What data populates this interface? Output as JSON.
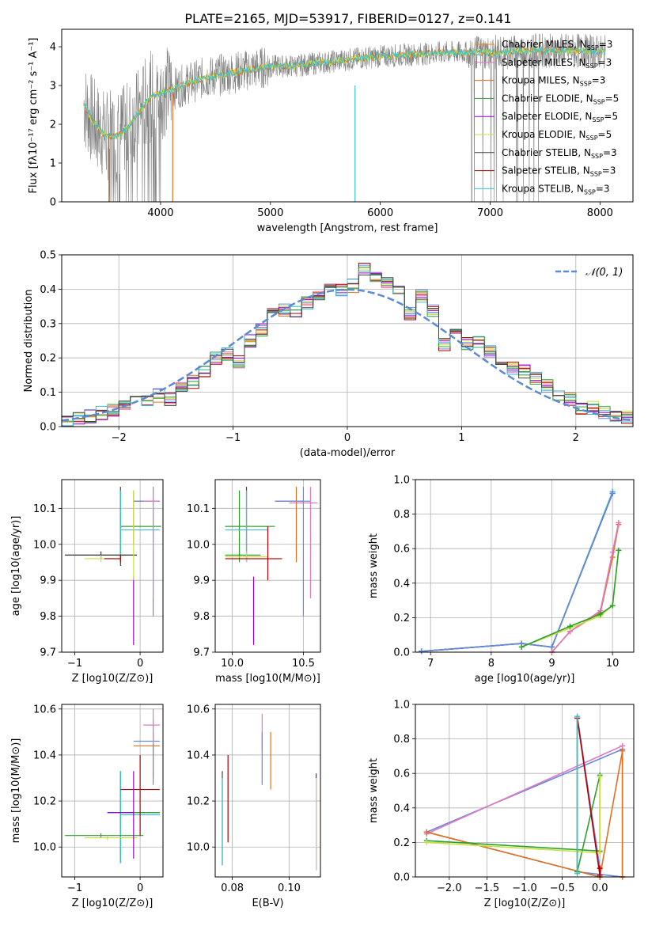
{
  "title": "PLATE=2165, MJD=53917, FIBERID=0127, z=0.141",
  "palette": [
    "#808080",
    "#ff7f0e",
    "#e07020",
    "#2ca02c",
    "#9400d3",
    "#c8e040",
    "#404040",
    "#b00000",
    "#40c0d0",
    "#6688dd",
    "#e377c2"
  ],
  "chart_data": [
    {
      "id": "spectrum",
      "type": "line",
      "xlabel": "wavelength [Angstrom, rest frame]",
      "ylabel": "Flux [f$_\\lambda$10$^{-17}$ erg cm$^{-2}$ s$^{-1}$ A$^{-1}$]",
      "ylabel_text": "Flux [fλ10⁻¹⁷ erg cm⁻² s⁻¹ A⁻¹]",
      "xlim": [
        3100,
        8300
      ],
      "ylim": [
        0,
        4.45
      ],
      "xticks": [
        4000,
        5000,
        6000,
        7000,
        8000
      ],
      "yticks": [
        0,
        1,
        2,
        3,
        4
      ],
      "legend_position": "top-right",
      "legend": [
        {
          "label": "Chabrier MILES, N_SSP=3",
          "color": "#ff7f0e"
        },
        {
          "label": "Salpeter MILES, N_SSP=3",
          "color": "#e377c2"
        },
        {
          "label": "Kroupa MILES, N_SSP=3",
          "color": "#e07020"
        },
        {
          "label": "Chabrier ELODIE, N_SSP=5",
          "color": "#2ca02c"
        },
        {
          "label": "Salpeter ELODIE, N_SSP=5",
          "color": "#9400d3"
        },
        {
          "label": "Kroupa ELODIE, N_SSP=5",
          "color": "#c8e040"
        },
        {
          "label": "Chabrier STELIB, N_SSP=3",
          "color": "#404040"
        },
        {
          "label": "Salpeter STELIB, N_SSP=3",
          "color": "#b00000"
        },
        {
          "label": "Kroupa STELIB, N_SSP=3",
          "color": "#40c0d0"
        }
      ],
      "continuum": {
        "x": [
          3300,
          3400,
          3500,
          3600,
          3700,
          3800,
          3900,
          4000,
          4100,
          4200,
          4400,
          4600,
          4800,
          5000,
          5200,
          5500,
          5800,
          6000,
          6300,
          6600,
          7000,
          7400,
          7800,
          8050
        ],
        "y": [
          2.5,
          2.0,
          1.7,
          1.7,
          1.9,
          2.3,
          2.7,
          2.8,
          2.9,
          3.0,
          3.2,
          3.3,
          3.4,
          3.5,
          3.5,
          3.6,
          3.7,
          3.75,
          3.8,
          3.85,
          3.85,
          3.9,
          3.9,
          3.85
        ]
      }
    },
    {
      "id": "residuals",
      "type": "step",
      "xlabel": "(data-model)/error",
      "ylabel": "Normed distribution",
      "xlim": [
        -2.5,
        2.5
      ],
      "ylim": [
        0,
        0.5
      ],
      "xticks": [
        -2,
        -1,
        0,
        1,
        2
      ],
      "xtick_labels": [
        "−2",
        "−1",
        "0",
        "1",
        "2"
      ],
      "yticks": [
        0,
        0.1,
        0.2,
        0.3,
        0.4,
        0.5
      ],
      "ytick_labels": [
        "0.0",
        "0.1",
        "0.2",
        "0.3",
        "0.4",
        "0.5"
      ],
      "legend": [
        {
          "label": "𝒩(0, 1)",
          "color": "#5b8bd0"
        }
      ],
      "bin_edges": [
        -2.5,
        -2.4,
        -2.3,
        -2.2,
        -2.1,
        -2.0,
        -1.9,
        -1.8,
        -1.7,
        -1.6,
        -1.5,
        -1.4,
        -1.3,
        -1.2,
        -1.1,
        -1.0,
        -0.9,
        -0.8,
        -0.7,
        -0.6,
        -0.5,
        -0.4,
        -0.3,
        -0.2,
        -0.1,
        0.0,
        0.1,
        0.2,
        0.3,
        0.4,
        0.5,
        0.6,
        0.7,
        0.8,
        0.9,
        1.0,
        1.1,
        1.2,
        1.3,
        1.4,
        1.5,
        1.6,
        1.7,
        1.8,
        1.9,
        2.0,
        2.1,
        2.2,
        2.3,
        2.4,
        2.5
      ],
      "counts": [
        0.02,
        0.025,
        0.03,
        0.04,
        0.05,
        0.06,
        0.07,
        0.08,
        0.09,
        0.08,
        0.11,
        0.13,
        0.16,
        0.2,
        0.21,
        0.19,
        0.25,
        0.28,
        0.33,
        0.34,
        0.33,
        0.36,
        0.38,
        0.41,
        0.4,
        0.41,
        0.46,
        0.44,
        0.42,
        0.4,
        0.33,
        0.38,
        0.34,
        0.24,
        0.29,
        0.24,
        0.25,
        0.22,
        0.19,
        0.17,
        0.16,
        0.14,
        0.12,
        0.09,
        0.08,
        0.05,
        0.055,
        0.04,
        0.03,
        0.025
      ]
    },
    {
      "id": "age-vs-Z",
      "type": "scatter",
      "xlabel": "Z [log10(Z/Z⊙)]",
      "ylabel": "age  [log10(age/yr)]",
      "xlim": [
        -1.2,
        0.35
      ],
      "ylim": [
        9.7,
        10.18
      ],
      "xticks": [
        -1,
        0
      ],
      "xtick_labels": [
        "−1",
        "0"
      ],
      "yticks": [
        9.7,
        9.8,
        9.9,
        10.0,
        10.1
      ],
      "ytick_labels": [
        "9.7",
        "9.8",
        "9.9",
        "10.0",
        "10.1"
      ]
    },
    {
      "id": "age-vs-mass",
      "type": "scatter",
      "xlabel": "mass [log10(M/M⊙)]",
      "ylabel": "",
      "xlim": [
        9.88,
        10.62
      ],
      "ylim": [
        9.7,
        10.18
      ],
      "xticks": [
        10.0,
        10.5
      ],
      "xtick_labels": [
        "10.0",
        "10.5"
      ],
      "yticks": [
        9.7,
        9.8,
        9.9,
        10.0,
        10.1
      ],
      "ytick_labels": [
        "9.7",
        "9.8",
        "9.9",
        "10.0",
        "10.1"
      ]
    },
    {
      "id": "weight-vs-age",
      "type": "line",
      "xlabel": "age  [log10(age/yr)]",
      "ylabel": "mass weight",
      "xlim": [
        6.75,
        10.35
      ],
      "ylim": [
        0,
        1.0
      ],
      "xticks": [
        7,
        8,
        9,
        10
      ],
      "xtick_labels": [
        "7",
        "8",
        "9",
        "10"
      ],
      "yticks": [
        0,
        0.2,
        0.4,
        0.6,
        0.8,
        1.0
      ],
      "ytick_labels": [
        "0.0",
        "0.2",
        "0.4",
        "0.6",
        "0.8",
        "1.0"
      ],
      "series": [
        {
          "x": [
            6.85,
            8.5,
            9.0,
            10.0
          ],
          "y": [
            0.005,
            0.05,
            0.03,
            0.93
          ],
          "color": "#40c0d0"
        },
        {
          "x": [
            6.85,
            8.5,
            9.0,
            10.0
          ],
          "y": [
            0.005,
            0.05,
            0.03,
            0.92
          ],
          "color": "#404040"
        },
        {
          "x": [
            6.85,
            8.5,
            9.0,
            10.0
          ],
          "y": [
            0.005,
            0.05,
            0.03,
            0.92
          ],
          "color": "#6688dd"
        },
        {
          "x": [
            9.0,
            9.3,
            9.8,
            10.0,
            10.1
          ],
          "y": [
            0.0,
            0.12,
            0.23,
            0.55,
            0.74
          ],
          "color": "#e07020"
        },
        {
          "x": [
            9.0,
            9.3,
            9.8,
            10.0,
            10.1
          ],
          "y": [
            0.0,
            0.12,
            0.24,
            0.58,
            0.75
          ],
          "color": "#e377c2"
        },
        {
          "x": [
            8.5,
            9.3,
            9.8,
            10.0,
            10.1
          ],
          "y": [
            0.03,
            0.14,
            0.21,
            0.27,
            0.59
          ],
          "color": "#c8e040"
        },
        {
          "x": [
            8.5,
            9.3,
            9.8,
            10.0,
            10.1
          ],
          "y": [
            0.03,
            0.15,
            0.22,
            0.27,
            0.59
          ],
          "color": "#2ca02c"
        }
      ]
    },
    {
      "id": "mass-vs-Z",
      "type": "scatter",
      "xlabel": "Z [log10(Z/Z⊙)]",
      "ylabel": "mass [log10(M/M⊙)]",
      "xlim": [
        -1.2,
        0.35
      ],
      "ylim": [
        9.87,
        10.62
      ],
      "xticks": [
        -1,
        0
      ],
      "xtick_labels": [
        "−1",
        "0"
      ],
      "yticks": [
        10.0,
        10.2,
        10.4,
        10.6
      ],
      "ytick_labels": [
        "10.0",
        "10.2",
        "10.4",
        "10.6"
      ]
    },
    {
      "id": "mass-vs-EBV",
      "type": "scatter",
      "xlabel": "E(B-V)",
      "ylabel": "",
      "xlim": [
        0.074,
        0.111
      ],
      "ylim": [
        9.87,
        10.62
      ],
      "xticks": [
        0.08,
        0.1
      ],
      "xtick_labels": [
        "0.08",
        "0.10"
      ],
      "yticks": [
        10.0,
        10.2,
        10.4,
        10.6
      ],
      "ytick_labels": [
        "10.0",
        "10.2",
        "10.4",
        "10.6"
      ]
    },
    {
      "id": "weight-vs-Z",
      "type": "line",
      "xlabel": "Z [log10(Z/Z⊙)]",
      "ylabel": "mass weight",
      "xlim": [
        -2.45,
        0.45
      ],
      "ylim": [
        0,
        1.0
      ],
      "xticks": [
        -2.0,
        -1.5,
        -1.0,
        -0.5,
        0.0
      ],
      "xtick_labels": [
        "−2.0",
        "−1.5",
        "−1.0",
        "−0.5",
        "0.0"
      ],
      "yticks": [
        0,
        0.2,
        0.4,
        0.6,
        0.8,
        1.0
      ],
      "ytick_labels": [
        "0.0",
        "0.2",
        "0.4",
        "0.6",
        "0.8",
        "1.0"
      ],
      "series": [
        {
          "x": [
            -2.3,
            0.3,
            0.3,
            -0.3,
            -0.3,
            0.0,
            0.0,
            -2.3
          ],
          "y": [
            0.26,
            0.74,
            0.0,
            0.03,
            0.93,
            0.05,
            0.0,
            0.26
          ],
          "color": "#6688dd"
        },
        {
          "x": [
            -2.3,
            0.3,
            0.3
          ],
          "y": [
            0.25,
            0.76,
            0.0
          ],
          "color": "#e377c2"
        },
        {
          "x": [
            -2.3,
            0.0,
            0.3,
            0.3
          ],
          "y": [
            0.26,
            0.0,
            0.73,
            0.0
          ],
          "color": "#e07020"
        },
        {
          "x": [
            -2.3,
            0.0,
            0.0,
            -0.3,
            -0.3
          ],
          "y": [
            0.21,
            0.15,
            0.59,
            0.03,
            0.92
          ],
          "color": "#2ca02c"
        },
        {
          "x": [
            -2.3,
            0.0,
            0.0
          ],
          "y": [
            0.2,
            0.14,
            0.58
          ],
          "color": "#c8e040"
        },
        {
          "x": [
            -0.3,
            0.0,
            0.0
          ],
          "y": [
            0.92,
            0.01,
            0.05
          ],
          "color": "#b00000"
        },
        {
          "x": [
            -0.3,
            -0.3
          ],
          "y": [
            0.93,
            0.02
          ],
          "color": "#40c0d0"
        }
      ]
    }
  ],
  "errorbars": {
    "age-vs-Z": [
      {
        "x": -0.3,
        "y": 10.05,
        "xe": [
          -0.3,
          0.32
        ],
        "ye": [
          9.94,
          10.16
        ],
        "color": "#404040"
      },
      {
        "x": -0.3,
        "y": 10.05,
        "xe": [
          -0.3,
          0.3
        ],
        "ye": [
          9.95,
          10.15
        ],
        "color": "#2ca02c"
      },
      {
        "x": -0.3,
        "y": 10.04,
        "xe": [
          -0.3,
          0.3
        ],
        "ye": [
          9.95,
          10.15
        ],
        "color": "#40c0d0"
      },
      {
        "x": -0.1,
        "y": 10.12,
        "xe": [
          -0.1,
          0.3
        ],
        "ye": [
          10.0,
          10.15
        ],
        "color": "#e07020"
      },
      {
        "x": 0.2,
        "y": 10.12,
        "xe": [
          -0.1,
          0.3
        ],
        "ye": [
          9.8,
          10.16
        ],
        "color": "#6688dd"
      },
      {
        "x": 0.2,
        "y": 10.12,
        "xe": [
          0.05,
          0.3
        ],
        "ye": [
          9.85,
          10.16
        ],
        "color": "#e377c2"
      },
      {
        "x": -0.6,
        "y": 9.97,
        "xe": [
          -1.15,
          -0.05
        ],
        "ye": [
          9.96,
          9.98
        ],
        "color": "#2ca02c"
      },
      {
        "x": -0.6,
        "y": 9.97,
        "xe": [
          -1.15,
          -0.05
        ],
        "ye": [
          9.96,
          9.98
        ],
        "color": "#404040"
      },
      {
        "x": -0.6,
        "y": 9.96,
        "xe": [
          -0.85,
          -0.3
        ],
        "ye": [
          9.95,
          9.97
        ],
        "color": "#c8e040"
      },
      {
        "x": -0.3,
        "y": 9.96,
        "xe": [
          -0.55,
          -0.3
        ],
        "ye": [
          9.95,
          9.97
        ],
        "color": "#b00000"
      },
      {
        "x": -0.1,
        "y": 9.96,
        "xe": [
          -0.1,
          -0.1
        ],
        "ye": [
          9.72,
          9.91
        ],
        "color": "#9400d3"
      },
      {
        "x": -0.1,
        "y": 10.05,
        "xe": [
          -0.1,
          -0.1
        ],
        "ye": [
          9.9,
          10.15
        ],
        "color": "#c8e040"
      }
    ],
    "age-vs-mass": [
      {
        "x": 10.1,
        "y": 10.05,
        "xe": [
          9.95,
          10.3
        ],
        "ye": [
          9.95,
          10.16
        ],
        "color": "#404040"
      },
      {
        "x": 10.05,
        "y": 10.05,
        "xe": [
          9.95,
          10.3
        ],
        "ye": [
          9.96,
          10.15
        ],
        "color": "#2ca02c"
      },
      {
        "x": 10.1,
        "y": 10.04,
        "xe": [
          9.95,
          10.25
        ],
        "ye": [
          9.95,
          10.15
        ],
        "color": "#40c0d0"
      },
      {
        "x": 10.45,
        "y": 10.12,
        "xe": [
          10.3,
          10.5
        ],
        "ye": [
          9.95,
          10.16
        ],
        "color": "#e07020"
      },
      {
        "x": 10.5,
        "y": 10.12,
        "xe": [
          10.3,
          10.55
        ],
        "ye": [
          9.8,
          10.16
        ],
        "color": "#6688dd"
      },
      {
        "x": 10.55,
        "y": 10.115,
        "xe": [
          10.4,
          10.6
        ],
        "ye": [
          9.85,
          10.16
        ],
        "color": "#e377c2"
      },
      {
        "x": 10.05,
        "y": 9.97,
        "xe": [
          9.95,
          10.2
        ],
        "ye": [
          9.95,
          9.98
        ],
        "color": "#2ca02c"
      },
      {
        "x": 10.1,
        "y": 9.965,
        "xe": [
          9.95,
          10.25
        ],
        "ye": [
          9.95,
          9.98
        ],
        "color": "#c8e040"
      },
      {
        "x": 10.25,
        "y": 9.96,
        "xe": [
          9.95,
          10.35
        ],
        "ye": [
          9.9,
          10.05
        ],
        "color": "#b00000"
      },
      {
        "x": 10.15,
        "y": 9.96,
        "xe": [
          10.15,
          10.15
        ],
        "ye": [
          9.72,
          9.91
        ],
        "color": "#9400d3"
      }
    ],
    "mass-vs-Z": [
      {
        "x": -0.3,
        "y": 10.15,
        "xe": [
          -0.5,
          0.3
        ],
        "ye": [
          9.93,
          10.33
        ],
        "color": "#404040"
      },
      {
        "x": -0.3,
        "y": 10.15,
        "xe": [
          -0.5,
          0.3
        ],
        "ye": [
          9.95,
          10.32
        ],
        "color": "#2ca02c"
      },
      {
        "x": -0.3,
        "y": 10.14,
        "xe": [
          -0.3,
          0.3
        ],
        "ye": [
          9.93,
          10.33
        ],
        "color": "#40c0d0"
      },
      {
        "x": 0.2,
        "y": 10.44,
        "xe": [
          -0.1,
          0.3
        ],
        "ye": [
          10.3,
          10.5
        ],
        "color": "#e07020"
      },
      {
        "x": 0.2,
        "y": 10.46,
        "xe": [
          -0.1,
          0.3
        ],
        "ye": [
          10.27,
          10.55
        ],
        "color": "#6688dd"
      },
      {
        "x": 0.2,
        "y": 10.53,
        "xe": [
          0.05,
          0.3
        ],
        "ye": [
          10.45,
          10.6
        ],
        "color": "#e377c2"
      },
      {
        "x": -0.6,
        "y": 10.05,
        "xe": [
          -1.15,
          0.05
        ],
        "ye": [
          10.04,
          10.06
        ],
        "color": "#2ca02c"
      },
      {
        "x": -0.5,
        "y": 10.04,
        "xe": [
          -0.85,
          -0.05
        ],
        "ye": [
          10.03,
          10.05
        ],
        "color": "#c8e040"
      },
      {
        "x": 0.0,
        "y": 10.25,
        "xe": [
          -0.3,
          0.3
        ],
        "ye": [
          10.05,
          10.4
        ],
        "color": "#b00000"
      },
      {
        "x": -0.1,
        "y": 10.15,
        "xe": [
          -0.5,
          -0.1
        ],
        "ye": [
          9.95,
          10.33
        ],
        "color": "#9400d3"
      }
    ],
    "mass-vs-EBV": [
      {
        "x": 0.0765,
        "y": 10.15,
        "xe": [
          0.0765,
          0.0765
        ],
        "ye": [
          9.92,
          10.33
        ],
        "color": "#404040"
      },
      {
        "x": 0.0765,
        "y": 10.1,
        "xe": [
          0.0765,
          0.0765
        ],
        "ye": [
          9.92,
          10.3
        ],
        "color": "#40c0d0"
      },
      {
        "x": 0.0785,
        "y": 10.2,
        "xe": [
          0.0785,
          0.0785
        ],
        "ye": [
          10.02,
          10.4
        ],
        "color": "#b00000"
      },
      {
        "x": 0.0905,
        "y": 10.5,
        "xe": [
          0.0905,
          0.0905
        ],
        "ye": [
          10.42,
          10.58
        ],
        "color": "#e377c2"
      },
      {
        "x": 0.0905,
        "y": 10.4,
        "xe": [
          0.0905,
          0.0905
        ],
        "ye": [
          10.27,
          10.5
        ],
        "color": "#6688dd"
      },
      {
        "x": 0.0935,
        "y": 10.38,
        "xe": [
          0.0935,
          0.0935
        ],
        "ye": [
          10.25,
          10.5
        ],
        "color": "#e07020"
      },
      {
        "x": 0.1095,
        "y": 10.12,
        "xe": [
          0.1095,
          0.1095
        ],
        "ye": [
          9.9,
          10.32
        ],
        "color": "#9400d3"
      },
      {
        "x": 0.1095,
        "y": 10.1,
        "xe": [
          0.1095,
          0.1095
        ],
        "ye": [
          9.9,
          10.3
        ],
        "color": "#c8e040"
      }
    ]
  }
}
